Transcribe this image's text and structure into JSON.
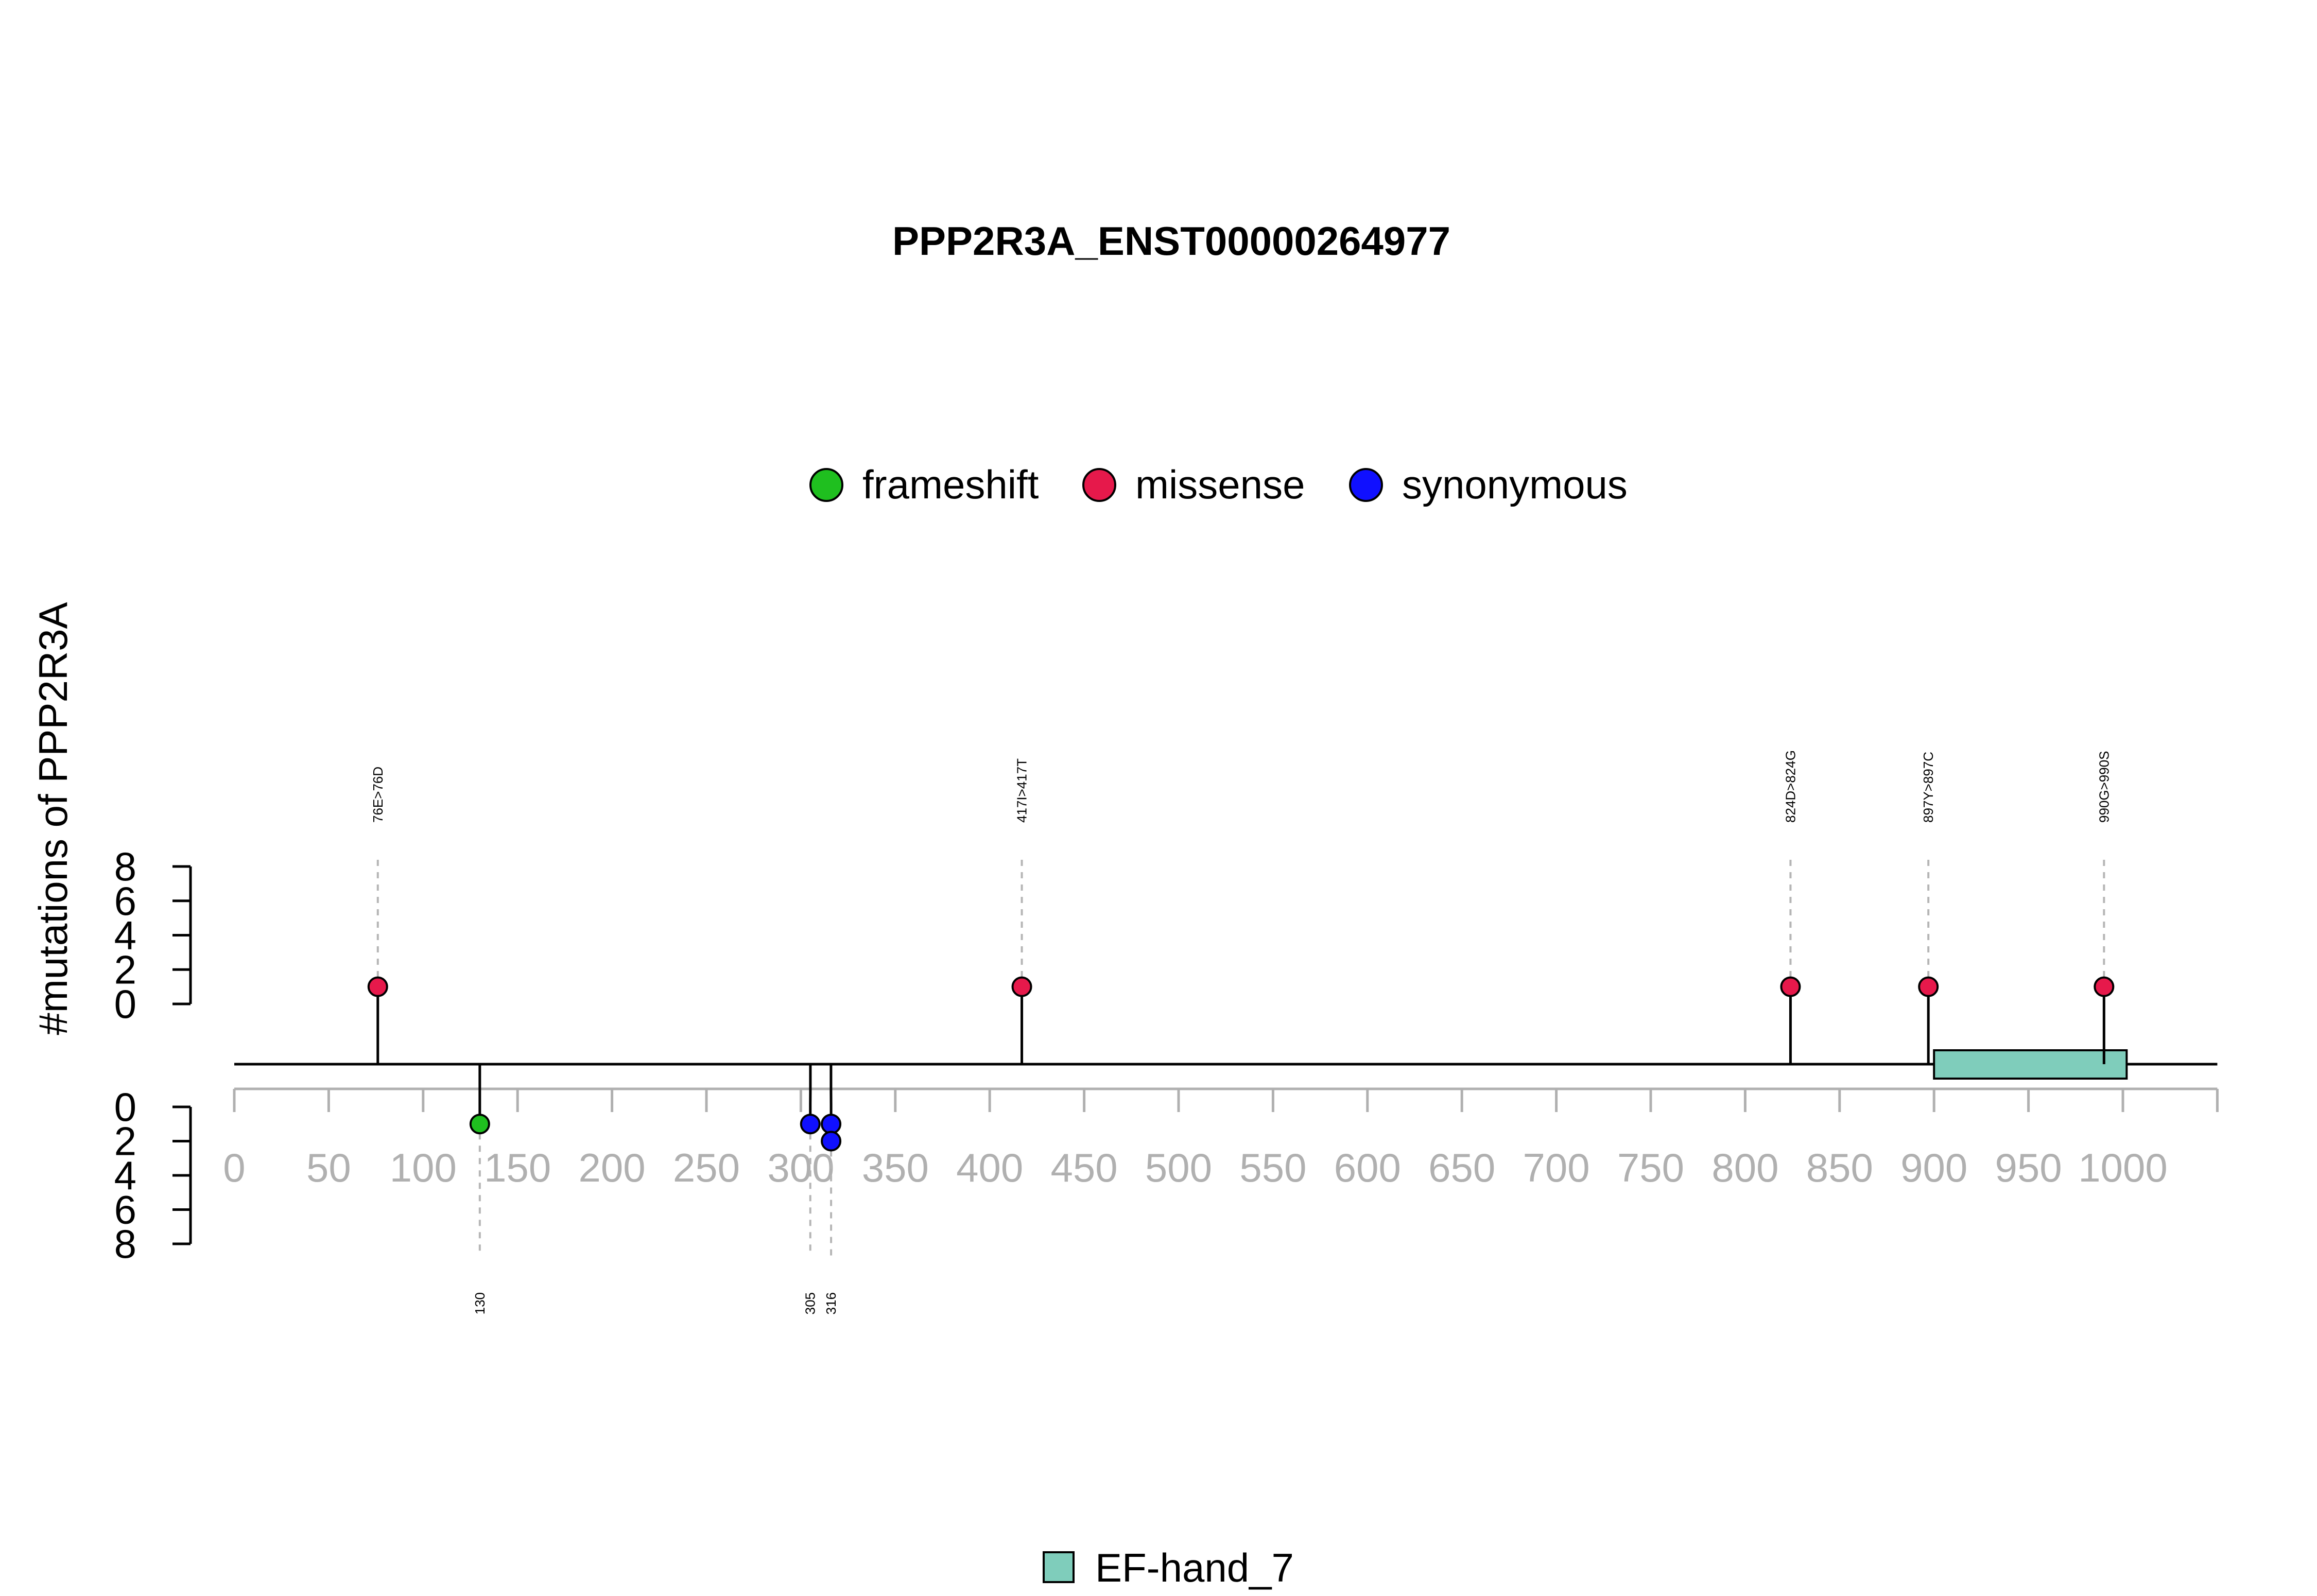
{
  "chart_data": {
    "type": "lollipop",
    "title": "PPP2R3A_ENST00000264977",
    "ylabel": "#mutations of PPP2R3A",
    "x_ticks": [
      0,
      50,
      100,
      150,
      200,
      250,
      300,
      350,
      400,
      450,
      500,
      550,
      600,
      650,
      700,
      750,
      800,
      850,
      900,
      950,
      1000
    ],
    "xlim": [
      0,
      1050
    ],
    "upper_y_ticks": [
      0,
      2,
      4,
      6,
      8
    ],
    "lower_y_ticks": [
      0,
      2,
      4,
      6,
      8
    ],
    "upper_ylim": [
      0,
      8
    ],
    "lower_ylim": [
      0,
      8
    ],
    "grid": false,
    "legend": {
      "placement": "top-center",
      "items": [
        {
          "label": "frameshift",
          "color": "#1fbf1f"
        },
        {
          "label": "missense",
          "color": "#e6194b"
        },
        {
          "label": "synonymous",
          "color": "#1010ff"
        }
      ]
    },
    "upper_mutations": [
      {
        "position": 76,
        "label": "76E>76D",
        "type": "missense",
        "count": 1
      },
      {
        "position": 417,
        "label": "417I>417T",
        "type": "missense",
        "count": 1
      },
      {
        "position": 824,
        "label": "824D>824G",
        "type": "missense",
        "count": 1
      },
      {
        "position": 897,
        "label": "897Y>897C",
        "type": "missense",
        "count": 1
      },
      {
        "position": 990,
        "label": "990G>990S",
        "type": "missense",
        "count": 1
      }
    ],
    "lower_mutations": [
      {
        "position": 130,
        "label": "130",
        "type": "frameshift",
        "counts": [
          1
        ]
      },
      {
        "position": 305,
        "label": "305",
        "type": "synonymous",
        "counts": [
          1
        ]
      },
      {
        "position": 316,
        "label": "316",
        "type": "synonymous",
        "counts": [
          1,
          2
        ]
      }
    ],
    "domains": [
      {
        "name": "EF-hand_7",
        "start": 900,
        "end": 1002,
        "color": "#7fcdbb"
      }
    ]
  }
}
